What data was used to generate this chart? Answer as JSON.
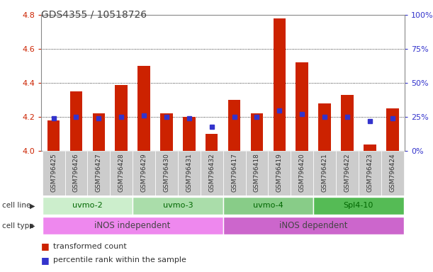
{
  "title": "GDS4355 / 10518726",
  "samples": [
    "GSM796425",
    "GSM796426",
    "GSM796427",
    "GSM796428",
    "GSM796429",
    "GSM796430",
    "GSM796431",
    "GSM796432",
    "GSM796417",
    "GSM796418",
    "GSM796419",
    "GSM796420",
    "GSM796421",
    "GSM796422",
    "GSM796423",
    "GSM796424"
  ],
  "bar_values": [
    4.18,
    4.35,
    4.22,
    4.39,
    4.5,
    4.22,
    4.2,
    4.1,
    4.3,
    4.22,
    4.78,
    4.52,
    4.28,
    4.33,
    4.04,
    4.25
  ],
  "dot_percentiles": [
    24,
    25,
    24,
    25,
    26,
    25,
    24,
    18,
    25,
    25,
    30,
    27,
    25,
    25,
    22,
    24
  ],
  "ylim": [
    4.0,
    4.8
  ],
  "yticks": [
    4.0,
    4.2,
    4.4,
    4.6,
    4.8
  ],
  "y2ticks_pct": [
    0,
    25,
    50,
    75,
    100
  ],
  "y2labels": [
    "0%",
    "25%",
    "50%",
    "75%",
    "100%"
  ],
  "bar_color": "#cc2200",
  "dot_color": "#3333cc",
  "base_value": 4.0,
  "yrange": 0.8,
  "cell_line_groups": [
    {
      "label": "uvmo-2",
      "start": 0,
      "end": 3,
      "color": "#cceecc"
    },
    {
      "label": "uvmo-3",
      "start": 4,
      "end": 7,
      "color": "#aaddaa"
    },
    {
      "label": "uvmo-4",
      "start": 8,
      "end": 11,
      "color": "#88cc88"
    },
    {
      "label": "Spl4-10",
      "start": 12,
      "end": 15,
      "color": "#55bb55"
    }
  ],
  "cell_type_groups": [
    {
      "label": "iNOS independent",
      "start": 0,
      "end": 7,
      "color": "#ee88ee"
    },
    {
      "label": "iNOS dependent",
      "start": 8,
      "end": 15,
      "color": "#cc66cc"
    }
  ],
  "legend_bar_label": "transformed count",
  "legend_dot_label": "percentile rank within the sample",
  "bg_color": "#ffffff",
  "plot_bg": "#ffffff",
  "ylabel_color": "#cc2200",
  "y2label_color": "#3333cc",
  "title_color": "#444444",
  "xtick_bg": "#cccccc",
  "cell_line_text_color": "#006600",
  "cell_type_text_color": "#444444"
}
